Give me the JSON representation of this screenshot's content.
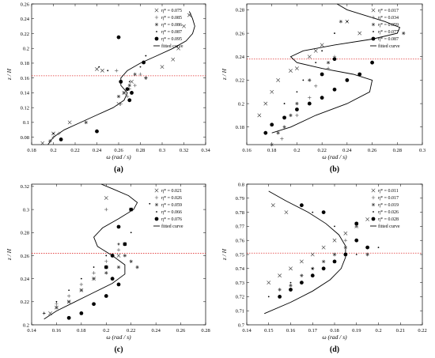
{
  "chart_data": [
    {
      "type": "scatter",
      "panel_label": "(a)",
      "xlabel": "ω (rad / s)",
      "ylabel": "z / H",
      "xlim": [
        0.18,
        0.34
      ],
      "ylim": [
        0.26,
        0.07
      ],
      "y_inverted": true,
      "xticks": [
        "0.18",
        "0.2",
        "0.22",
        "0.24",
        "0.26",
        "0.28",
        "0.3",
        "0.32",
        "0.34"
      ],
      "yticks": [
        "0.08",
        "0.1",
        "0.12",
        "0.14",
        "0.16",
        "0.18",
        "0.2",
        "0.22",
        "0.24",
        "0.26"
      ],
      "reference_line": 0.163,
      "legend_position": "top-right",
      "series": [
        {
          "name": "η* = 0.075",
          "marker": "x",
          "x": [
            0.19,
            0.2,
            0.215,
            0.26,
            0.265,
            0.272,
            0.3,
            0.31,
            0.315,
            0.32,
            0.325,
            0.245,
            0.24
          ],
          "y": [
            0.072,
            0.085,
            0.1,
            0.125,
            0.14,
            0.155,
            0.175,
            0.185,
            0.2,
            0.23,
            0.245,
            0.17,
            0.172
          ]
        },
        {
          "name": "η* = 0.085",
          "marker": "+",
          "x": [
            0.2,
            0.205,
            0.262,
            0.268,
            0.27,
            0.275,
            0.28,
            0.258,
            0.285
          ],
          "y": [
            0.08,
            0.085,
            0.125,
            0.135,
            0.145,
            0.15,
            0.165,
            0.17,
            0.16
          ]
        },
        {
          "name": "η* = 0.086",
          "marker": "star",
          "x": [
            0.197,
            0.23,
            0.26,
            0.265,
            0.27,
            0.275,
            0.285
          ],
          "y": [
            0.075,
            0.1,
            0.135,
            0.14,
            0.15,
            0.165,
            0.16
          ]
        },
        {
          "name": "η* = 0.087",
          "marker": "dot",
          "x": [
            0.2,
            0.242,
            0.25,
            0.27,
            0.28,
            0.285
          ],
          "y": [
            0.085,
            0.175,
            0.17,
            0.155,
            0.175,
            0.19
          ]
        },
        {
          "name": "η* = 0.095",
          "marker": "filled-circle",
          "x": [
            0.207,
            0.24,
            0.27,
            0.272,
            0.268,
            0.262,
            0.283,
            0.26
          ],
          "y": [
            0.077,
            0.088,
            0.13,
            0.14,
            0.145,
            0.155,
            0.181,
            0.215
          ]
        }
      ],
      "fitted_curve": {
        "name": "fitted curve",
        "x": [
          0.195,
          0.2,
          0.21,
          0.225,
          0.24,
          0.255,
          0.265,
          0.268,
          0.262,
          0.262,
          0.268,
          0.28,
          0.295,
          0.31,
          0.322,
          0.328,
          0.33,
          0.328,
          0.325
        ],
        "y": [
          0.07,
          0.08,
          0.09,
          0.1,
          0.11,
          0.12,
          0.13,
          0.14,
          0.15,
          0.16,
          0.17,
          0.18,
          0.19,
          0.2,
          0.21,
          0.22,
          0.23,
          0.24,
          0.25
        ]
      }
    },
    {
      "type": "scatter",
      "panel_label": "(b)",
      "xlabel": "ω (rad / s)",
      "ylabel": "z / H",
      "xlim": [
        0.16,
        0.3
      ],
      "ylim": [
        0.285,
        0.165
      ],
      "y_inverted": true,
      "xticks": [
        "0.16",
        "0.18",
        "0.2",
        "0.22",
        "0.24",
        "0.26",
        "0.28",
        "0.3"
      ],
      "yticks": [
        "0.18",
        "0.2",
        "0.22",
        "0.24",
        "0.26",
        "0.28"
      ],
      "reference_line": 0.238,
      "legend_position": "top-right",
      "series": [
        {
          "name": "η* = 0.017",
          "marker": "x",
          "x": [
            0.17,
            0.175,
            0.18,
            0.185,
            0.195,
            0.2,
            0.21,
            0.215,
            0.22,
            0.24,
            0.25
          ],
          "y": [
            0.19,
            0.2,
            0.21,
            0.22,
            0.228,
            0.23,
            0.24,
            0.245,
            0.25,
            0.27,
            0.26
          ]
        },
        {
          "name": "η* = 0.034",
          "marker": "+",
          "x": [
            0.188,
            0.2,
            0.21,
            0.215,
            0.22,
            0.225,
            0.23
          ],
          "y": [
            0.17,
            0.19,
            0.205,
            0.215,
            0.225,
            0.23,
            0.24
          ]
        },
        {
          "name": "η* = 0.059",
          "marker": "star",
          "x": [
            0.18,
            0.185,
            0.19,
            0.195,
            0.2,
            0.21,
            0.225,
            0.235,
            0.285
          ],
          "y": [
            0.165,
            0.175,
            0.18,
            0.19,
            0.2,
            0.22,
            0.235,
            0.27,
            0.26
          ]
        },
        {
          "name": "η* = 0.077",
          "marker": "dot",
          "x": [
            0.19,
            0.2,
            0.205,
            0.215,
            0.22,
            0.23,
            0.24
          ],
          "y": [
            0.2,
            0.21,
            0.22,
            0.235,
            0.245,
            0.26,
            0.27
          ]
        },
        {
          "name": "η* = 0.087",
          "marker": "filled-circle",
          "x": [
            0.175,
            0.18,
            0.19,
            0.2,
            0.21,
            0.22,
            0.23,
            0.24,
            0.25,
            0.26,
            0.23,
            0.22
          ],
          "y": [
            0.175,
            0.182,
            0.188,
            0.195,
            0.2,
            0.205,
            0.212,
            0.22,
            0.225,
            0.235,
            0.238,
            0.225
          ]
        }
      ],
      "fitted_curve": {
        "name": "fitted curve",
        "x": [
          0.18,
          0.195,
          0.215,
          0.24,
          0.258,
          0.26,
          0.245,
          0.22,
          0.2,
          0.195,
          0.205,
          0.23,
          0.26,
          0.28,
          0.282,
          0.27,
          0.255,
          0.24,
          0.232
        ],
        "y": [
          0.175,
          0.18,
          0.19,
          0.2,
          0.21,
          0.22,
          0.225,
          0.23,
          0.235,
          0.24,
          0.245,
          0.25,
          0.255,
          0.26,
          0.265,
          0.27,
          0.275,
          0.28,
          0.285
        ]
      }
    },
    {
      "type": "scatter",
      "panel_label": "(c)",
      "xlabel": "ω (rad / s)",
      "ylabel": "z / H",
      "xlim": [
        0.14,
        0.28
      ],
      "ylim": [
        0.322,
        0.2
      ],
      "y_inverted": true,
      "xticks": [
        "0.14",
        "0.16",
        "0.18",
        "0.2",
        "0.22",
        "0.24",
        "0.26",
        "0.28"
      ],
      "yticks": [
        "0.2",
        "0.22",
        "0.24",
        "0.26",
        "0.28",
        "0.3",
        "0.32"
      ],
      "reference_line": 0.262,
      "legend_position": "top-right",
      "series": [
        {
          "name": "η* = 0.021",
          "marker": "x",
          "x": [
            0.155,
            0.16,
            0.17,
            0.18,
            0.19,
            0.2,
            0.21,
            0.215,
            0.22,
            0.2
          ],
          "y": [
            0.21,
            0.215,
            0.22,
            0.23,
            0.24,
            0.25,
            0.26,
            0.27,
            0.3,
            0.31
          ]
        },
        {
          "name": "η* = 0.026",
          "marker": "+",
          "x": [
            0.15,
            0.16,
            0.17,
            0.18,
            0.19,
            0.2,
            0.21,
            0.21,
            0.2
          ],
          "y": [
            0.21,
            0.218,
            0.225,
            0.235,
            0.245,
            0.255,
            0.265,
            0.27,
            0.3
          ]
        },
        {
          "name": "η* = 0.059",
          "marker": "star",
          "x": [
            0.16,
            0.17,
            0.18,
            0.19,
            0.2,
            0.21,
            0.22,
            0.215,
            0.225
          ],
          "y": [
            0.215,
            0.22,
            0.23,
            0.24,
            0.245,
            0.25,
            0.255,
            0.26,
            0.25
          ]
        },
        {
          "name": "η* = 0.066",
          "marker": "dot",
          "x": [
            0.15,
            0.16,
            0.17,
            0.18,
            0.19,
            0.2,
            0.21,
            0.22,
            0.235
          ],
          "y": [
            0.21,
            0.22,
            0.23,
            0.24,
            0.25,
            0.26,
            0.27,
            0.28,
            0.305
          ]
        },
        {
          "name": "η* = 0.076",
          "marker": "filled-circle",
          "x": [
            0.17,
            0.18,
            0.19,
            0.2,
            0.21,
            0.205,
            0.2,
            0.205,
            0.215,
            0.21,
            0.22
          ],
          "y": [
            0.206,
            0.21,
            0.218,
            0.225,
            0.235,
            0.24,
            0.25,
            0.26,
            0.27,
            0.285,
            0.3
          ]
        }
      ],
      "fitted_curve": {
        "name": "fitted curve",
        "x": [
          0.15,
          0.16,
          0.175,
          0.19,
          0.205,
          0.215,
          0.215,
          0.205,
          0.193,
          0.19,
          0.197,
          0.21,
          0.222,
          0.225,
          0.218,
          0.205,
          0.196
        ],
        "y": [
          0.205,
          0.212,
          0.22,
          0.228,
          0.236,
          0.244,
          0.252,
          0.26,
          0.268,
          0.276,
          0.284,
          0.292,
          0.3,
          0.306,
          0.312,
          0.318,
          0.322
        ]
      }
    },
    {
      "type": "scatter",
      "panel_label": "(d)",
      "xlabel": "ω (rad / s)",
      "ylabel": "z / H",
      "xlim": [
        0.14,
        0.22
      ],
      "ylim": [
        0.8,
        0.7
      ],
      "y_inverted": true,
      "xticks": [
        "0.14",
        "0.15",
        "0.16",
        "0.17",
        "0.18",
        "0.19",
        "0.2",
        "0.21",
        "0.22"
      ],
      "yticks": [
        "0.7",
        "0.71",
        "0.72",
        "0.73",
        "0.74",
        "0.75",
        "0.76",
        "0.77",
        "0.78",
        "0.79",
        "0.8"
      ],
      "reference_line": 0.751,
      "legend_position": "top-right",
      "series": [
        {
          "name": "η* = 0.011",
          "marker": "x",
          "x": [
            0.15,
            0.155,
            0.16,
            0.165,
            0.17,
            0.175,
            0.18,
            0.185,
            0.19,
            0.195,
            0.158,
            0.152
          ],
          "y": [
            0.73,
            0.735,
            0.74,
            0.745,
            0.75,
            0.755,
            0.76,
            0.765,
            0.77,
            0.775,
            0.78,
            0.785
          ]
        },
        {
          "name": "η* = 0.017",
          "marker": "+",
          "x": [
            0.155,
            0.16,
            0.165,
            0.17,
            0.175,
            0.18,
            0.185,
            0.19,
            0.195
          ],
          "y": [
            0.72,
            0.725,
            0.73,
            0.735,
            0.74,
            0.75,
            0.76,
            0.77,
            0.75
          ]
        },
        {
          "name": "η* = 0.019",
          "marker": "star",
          "x": [
            0.155,
            0.16,
            0.165,
            0.17,
            0.175,
            0.18,
            0.185,
            0.19,
            0.195
          ],
          "y": [
            0.725,
            0.728,
            0.735,
            0.74,
            0.745,
            0.75,
            0.755,
            0.76,
            0.75
          ]
        },
        {
          "name": "η* = 0.026",
          "marker": "dot",
          "x": [
            0.15,
            0.16,
            0.17,
            0.18,
            0.19,
            0.2,
            0.18,
            0.17
          ],
          "y": [
            0.72,
            0.73,
            0.74,
            0.745,
            0.75,
            0.755,
            0.77,
            0.78
          ]
        },
        {
          "name": "η* = 0.028",
          "marker": "filled-circle",
          "x": [
            0.155,
            0.16,
            0.165,
            0.17,
            0.175,
            0.18,
            0.185,
            0.19,
            0.195,
            0.19,
            0.175,
            0.165
          ],
          "y": [
            0.72,
            0.725,
            0.73,
            0.735,
            0.74,
            0.745,
            0.75,
            0.76,
            0.755,
            0.772,
            0.78,
            0.785
          ]
        }
      ],
      "fitted_curve": {
        "name": "fitted curve",
        "x": [
          0.148,
          0.16,
          0.17,
          0.178,
          0.183,
          0.185,
          0.185,
          0.182,
          0.176,
          0.168,
          0.158,
          0.15
        ],
        "y": [
          0.708,
          0.716,
          0.724,
          0.732,
          0.74,
          0.748,
          0.756,
          0.764,
          0.772,
          0.78,
          0.788,
          0.795
        ]
      }
    }
  ]
}
